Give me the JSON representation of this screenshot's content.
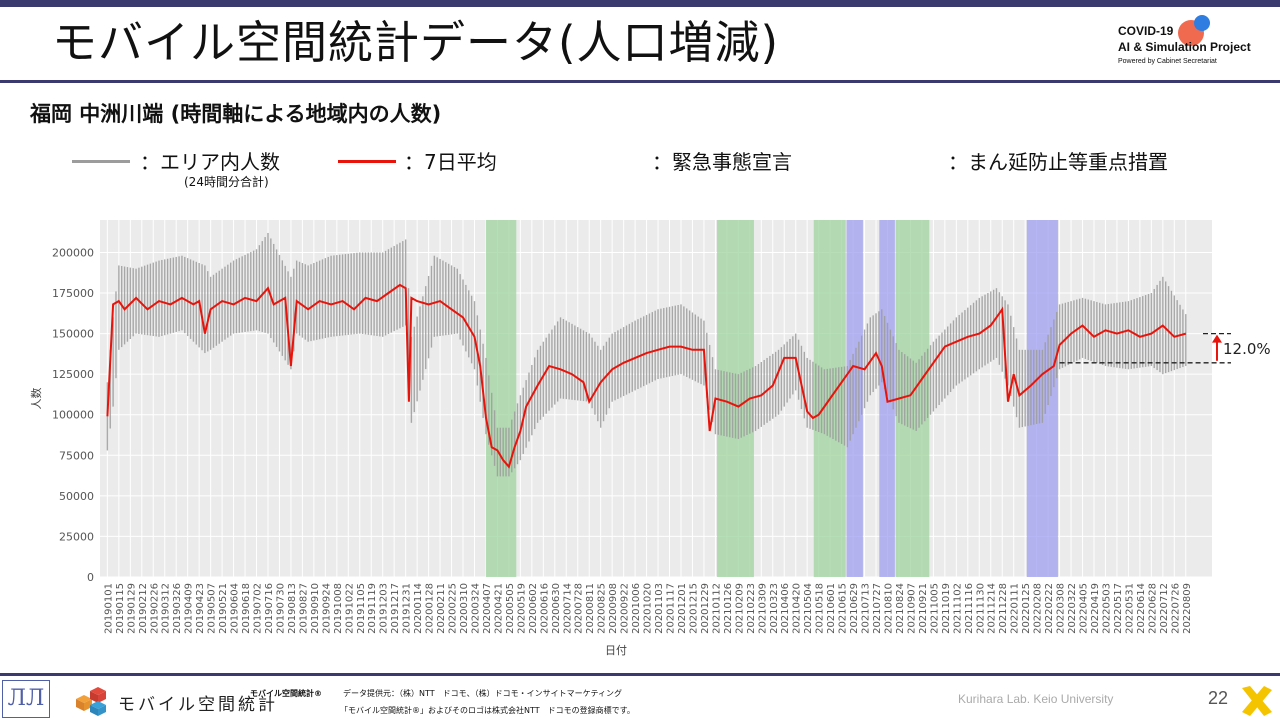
{
  "header": {
    "title": "モバイル空間統計データ(人口増減)",
    "logo_line1": "COVID-19",
    "logo_line2": "AI & Simulation Project",
    "logo_line3": "Powered by Cabinet Secretariat"
  },
  "subtitle": "福岡 中洲川端 (時間軸による地域内の人数)",
  "legend": {
    "gray_label": "：エリア内人数",
    "gray_note": "(24時間分合計)",
    "red_label": "：7日平均",
    "green_label": "：緊急事態宣言",
    "blue_label": "：まん延防止等重点措置"
  },
  "colors": {
    "accent_navy": "#3a3a6e",
    "daily_gray": "#9c9c9c",
    "avg_red": "#e8140c",
    "emergency_green": "#9fd39d",
    "semi_emergency_blue": "#9f9ff0",
    "plot_bg": "#ebebeb"
  },
  "chart_data": {
    "type": "line",
    "title": "",
    "xlabel": "日付",
    "ylabel": "人数",
    "ylim": [
      0,
      220000
    ],
    "yticks": [
      0,
      25000,
      50000,
      75000,
      100000,
      125000,
      150000,
      175000,
      200000
    ],
    "ytick_labels": [
      "0",
      "25000",
      "50000",
      "75000",
      "100000",
      "125000",
      "150000",
      "175000",
      "200000"
    ],
    "xlim": [
      "2018-12-23",
      "2022-09-10"
    ],
    "xtick_labels": [
      "20190101",
      "20190115",
      "20190129",
      "20190212",
      "20190226",
      "20190312",
      "20190326",
      "20190409",
      "20190423",
      "20190507",
      "20190521",
      "20190604",
      "20190618",
      "20190702",
      "20190716",
      "20190730",
      "20190813",
      "20190827",
      "20190910",
      "20190924",
      "20191008",
      "20191022",
      "20191105",
      "20191119",
      "20191203",
      "20191217",
      "20191231",
      "20200114",
      "20200128",
      "20200211",
      "20200225",
      "20200310",
      "20200324",
      "20200407",
      "20200421",
      "20200505",
      "20200519",
      "20200602",
      "20200616",
      "20200630",
      "20200714",
      "20200728",
      "20200811",
      "20200825",
      "20200908",
      "20200922",
      "20201006",
      "20201020",
      "20201103",
      "20201117",
      "20201201",
      "20201215",
      "20201229",
      "20210112",
      "20210126",
      "20210209",
      "20210223",
      "20210309",
      "20210323",
      "20210406",
      "20210420",
      "20210504",
      "20210518",
      "20210601",
      "20210615",
      "20210629",
      "20210713",
      "20210727",
      "20210810",
      "20210824",
      "20210907",
      "20210921",
      "20211005",
      "20211019",
      "20211102",
      "20211116",
      "20211130",
      "20211214",
      "20211228",
      "20220111",
      "20220125",
      "20220208",
      "20220222",
      "20220308",
      "20220322",
      "20220405",
      "20220419",
      "20220503",
      "20220517",
      "20220531",
      "20220614",
      "20220628",
      "20220712",
      "20220726",
      "20220809"
    ],
    "series": [
      {
        "name": "エリア内人数",
        "style": "weekly range",
        "x": [
          "2019-01-01",
          "2019-01-08",
          "2019-01-15",
          "2019-02-05",
          "2019-03-05",
          "2019-04-02",
          "2019-04-30",
          "2019-05-07",
          "2019-06-04",
          "2019-07-02",
          "2019-07-16",
          "2019-08-13",
          "2019-08-20",
          "2019-09-03",
          "2019-10-01",
          "2019-11-05",
          "2019-12-03",
          "2019-12-31",
          "2020-01-07",
          "2020-02-04",
          "2020-03-03",
          "2020-03-24",
          "2020-04-07",
          "2020-04-21",
          "2020-05-05",
          "2020-05-19",
          "2020-06-09",
          "2020-07-07",
          "2020-08-11",
          "2020-08-25",
          "2020-09-08",
          "2020-10-06",
          "2020-11-03",
          "2020-12-01",
          "2020-12-29",
          "2021-01-12",
          "2021-02-09",
          "2021-03-02",
          "2021-03-30",
          "2021-04-20",
          "2021-05-04",
          "2021-05-25",
          "2021-06-22",
          "2021-07-20",
          "2021-08-03",
          "2021-08-24",
          "2021-09-14",
          "2021-10-05",
          "2021-11-02",
          "2021-11-30",
          "2021-12-21",
          "2022-01-04",
          "2022-01-18",
          "2022-02-15",
          "2022-03-08",
          "2022-04-05",
          "2022-05-03",
          "2022-05-31",
          "2022-06-28",
          "2022-07-12",
          "2022-08-09"
        ],
        "low": [
          78000,
          105000,
          140000,
          150000,
          148000,
          152000,
          138000,
          140000,
          150000,
          152000,
          150000,
          128000,
          150000,
          145000,
          148000,
          150000,
          148000,
          155000,
          95000,
          148000,
          150000,
          128000,
          88000,
          62000,
          62000,
          72000,
          95000,
          110000,
          108000,
          92000,
          108000,
          115000,
          122000,
          125000,
          118000,
          88000,
          85000,
          90000,
          100000,
          115000,
          92000,
          88000,
          80000,
          112000,
          120000,
          95000,
          90000,
          102000,
          118000,
          128000,
          135000,
          118000,
          92000,
          95000,
          128000,
          135000,
          130000,
          128000,
          130000,
          125000,
          130000
        ],
        "high": [
          120000,
          160000,
          192000,
          190000,
          195000,
          198000,
          192000,
          185000,
          195000,
          202000,
          212000,
          185000,
          195000,
          192000,
          198000,
          200000,
          200000,
          208000,
          148000,
          198000,
          190000,
          170000,
          135000,
          92000,
          92000,
          112000,
          140000,
          160000,
          150000,
          140000,
          150000,
          158000,
          165000,
          168000,
          158000,
          128000,
          125000,
          130000,
          140000,
          150000,
          135000,
          128000,
          130000,
          160000,
          165000,
          140000,
          132000,
          145000,
          160000,
          172000,
          178000,
          168000,
          140000,
          140000,
          168000,
          172000,
          168000,
          170000,
          175000,
          185000,
          162000
        ]
      },
      {
        "name": "7日平均",
        "x": [
          "2019-01-01",
          "2019-01-08",
          "2019-01-15",
          "2019-01-22",
          "2019-02-05",
          "2019-02-19",
          "2019-03-05",
          "2019-03-19",
          "2019-04-02",
          "2019-04-16",
          "2019-04-23",
          "2019-04-30",
          "2019-05-07",
          "2019-05-21",
          "2019-06-04",
          "2019-06-18",
          "2019-07-02",
          "2019-07-16",
          "2019-07-23",
          "2019-08-06",
          "2019-08-13",
          "2019-08-20",
          "2019-09-03",
          "2019-09-17",
          "2019-10-01",
          "2019-10-15",
          "2019-10-29",
          "2019-11-12",
          "2019-11-26",
          "2019-12-10",
          "2019-12-24",
          "2019-12-31",
          "2020-01-04",
          "2020-01-07",
          "2020-01-14",
          "2020-01-28",
          "2020-02-11",
          "2020-02-25",
          "2020-03-10",
          "2020-03-24",
          "2020-03-31",
          "2020-04-07",
          "2020-04-14",
          "2020-04-21",
          "2020-04-28",
          "2020-05-05",
          "2020-05-12",
          "2020-05-19",
          "2020-05-26",
          "2020-06-09",
          "2020-06-23",
          "2020-07-07",
          "2020-07-21",
          "2020-08-04",
          "2020-08-11",
          "2020-08-25",
          "2020-09-08",
          "2020-09-22",
          "2020-10-06",
          "2020-10-20",
          "2020-11-03",
          "2020-11-17",
          "2020-12-01",
          "2020-12-15",
          "2020-12-29",
          "2021-01-05",
          "2021-01-12",
          "2021-01-26",
          "2021-02-09",
          "2021-02-23",
          "2021-03-09",
          "2021-03-23",
          "2021-04-06",
          "2021-04-20",
          "2021-05-04",
          "2021-05-11",
          "2021-05-18",
          "2021-06-01",
          "2021-06-15",
          "2021-06-29",
          "2021-07-13",
          "2021-07-27",
          "2021-08-03",
          "2021-08-10",
          "2021-08-24",
          "2021-09-07",
          "2021-09-21",
          "2021-10-05",
          "2021-10-19",
          "2021-11-02",
          "2021-11-16",
          "2021-11-30",
          "2021-12-14",
          "2021-12-21",
          "2021-12-28",
          "2022-01-04",
          "2022-01-11",
          "2022-01-18",
          "2022-02-01",
          "2022-02-15",
          "2022-03-01",
          "2022-03-08",
          "2022-03-22",
          "2022-04-05",
          "2022-04-19",
          "2022-05-03",
          "2022-05-17",
          "2022-05-31",
          "2022-06-14",
          "2022-06-28",
          "2022-07-12",
          "2022-07-26",
          "2022-08-09"
        ],
        "y": [
          99000,
          168000,
          170000,
          165000,
          172000,
          165000,
          170000,
          168000,
          172000,
          168000,
          170000,
          150000,
          165000,
          170000,
          168000,
          172000,
          170000,
          178000,
          168000,
          172000,
          130000,
          170000,
          165000,
          170000,
          168000,
          170000,
          165000,
          172000,
          170000,
          175000,
          180000,
          178000,
          108000,
          172000,
          170000,
          168000,
          170000,
          165000,
          160000,
          148000,
          130000,
          98000,
          80000,
          78000,
          72000,
          68000,
          80000,
          90000,
          105000,
          118000,
          130000,
          128000,
          125000,
          120000,
          108000,
          120000,
          128000,
          132000,
          135000,
          138000,
          140000,
          142000,
          142000,
          140000,
          140000,
          90000,
          110000,
          108000,
          105000,
          110000,
          112000,
          118000,
          135000,
          135000,
          102000,
          98000,
          100000,
          110000,
          120000,
          130000,
          128000,
          138000,
          130000,
          108000,
          110000,
          112000,
          122000,
          132000,
          142000,
          145000,
          148000,
          150000,
          155000,
          160000,
          165000,
          108000,
          125000,
          112000,
          118000,
          125000,
          130000,
          143000,
          150000,
          155000,
          148000,
          152000,
          150000,
          152000,
          148000,
          150000,
          155000,
          148000,
          150000
        ]
      }
    ],
    "shaded_periods": [
      {
        "type": "緊急事態宣言",
        "start": "2020-04-07",
        "end": "2020-05-14"
      },
      {
        "type": "緊急事態宣言",
        "start": "2021-01-14",
        "end": "2021-02-28"
      },
      {
        "type": "緊急事態宣言",
        "start": "2021-05-12",
        "end": "2021-06-20"
      },
      {
        "type": "まん延防止等重点措置",
        "start": "2021-06-21",
        "end": "2021-07-11"
      },
      {
        "type": "まん延防止等重点措置",
        "start": "2021-07-31",
        "end": "2021-08-19"
      },
      {
        "type": "緊急事態宣言",
        "start": "2021-08-20",
        "end": "2021-09-30"
      },
      {
        "type": "まん延防止等重点措置",
        "start": "2022-01-27",
        "end": "2022-03-06"
      }
    ],
    "annotation": {
      "label": "12.0%",
      "from_value": 132000,
      "to_value": 150000
    }
  },
  "footer": {
    "brand": "モバイル空間統計",
    "tm_label": "モバイル空間統計®",
    "source": "データ提供元：（株）NTT　ドコモ、（株）ドコモ・インサイトマーケティング",
    "trademark_note": "「モバイル空間統計®」およびそのロゴは株式会社NTT　ドコモの登録商標です。",
    "lab": "Kurihara Lab. Keio University",
    "page": "22"
  }
}
